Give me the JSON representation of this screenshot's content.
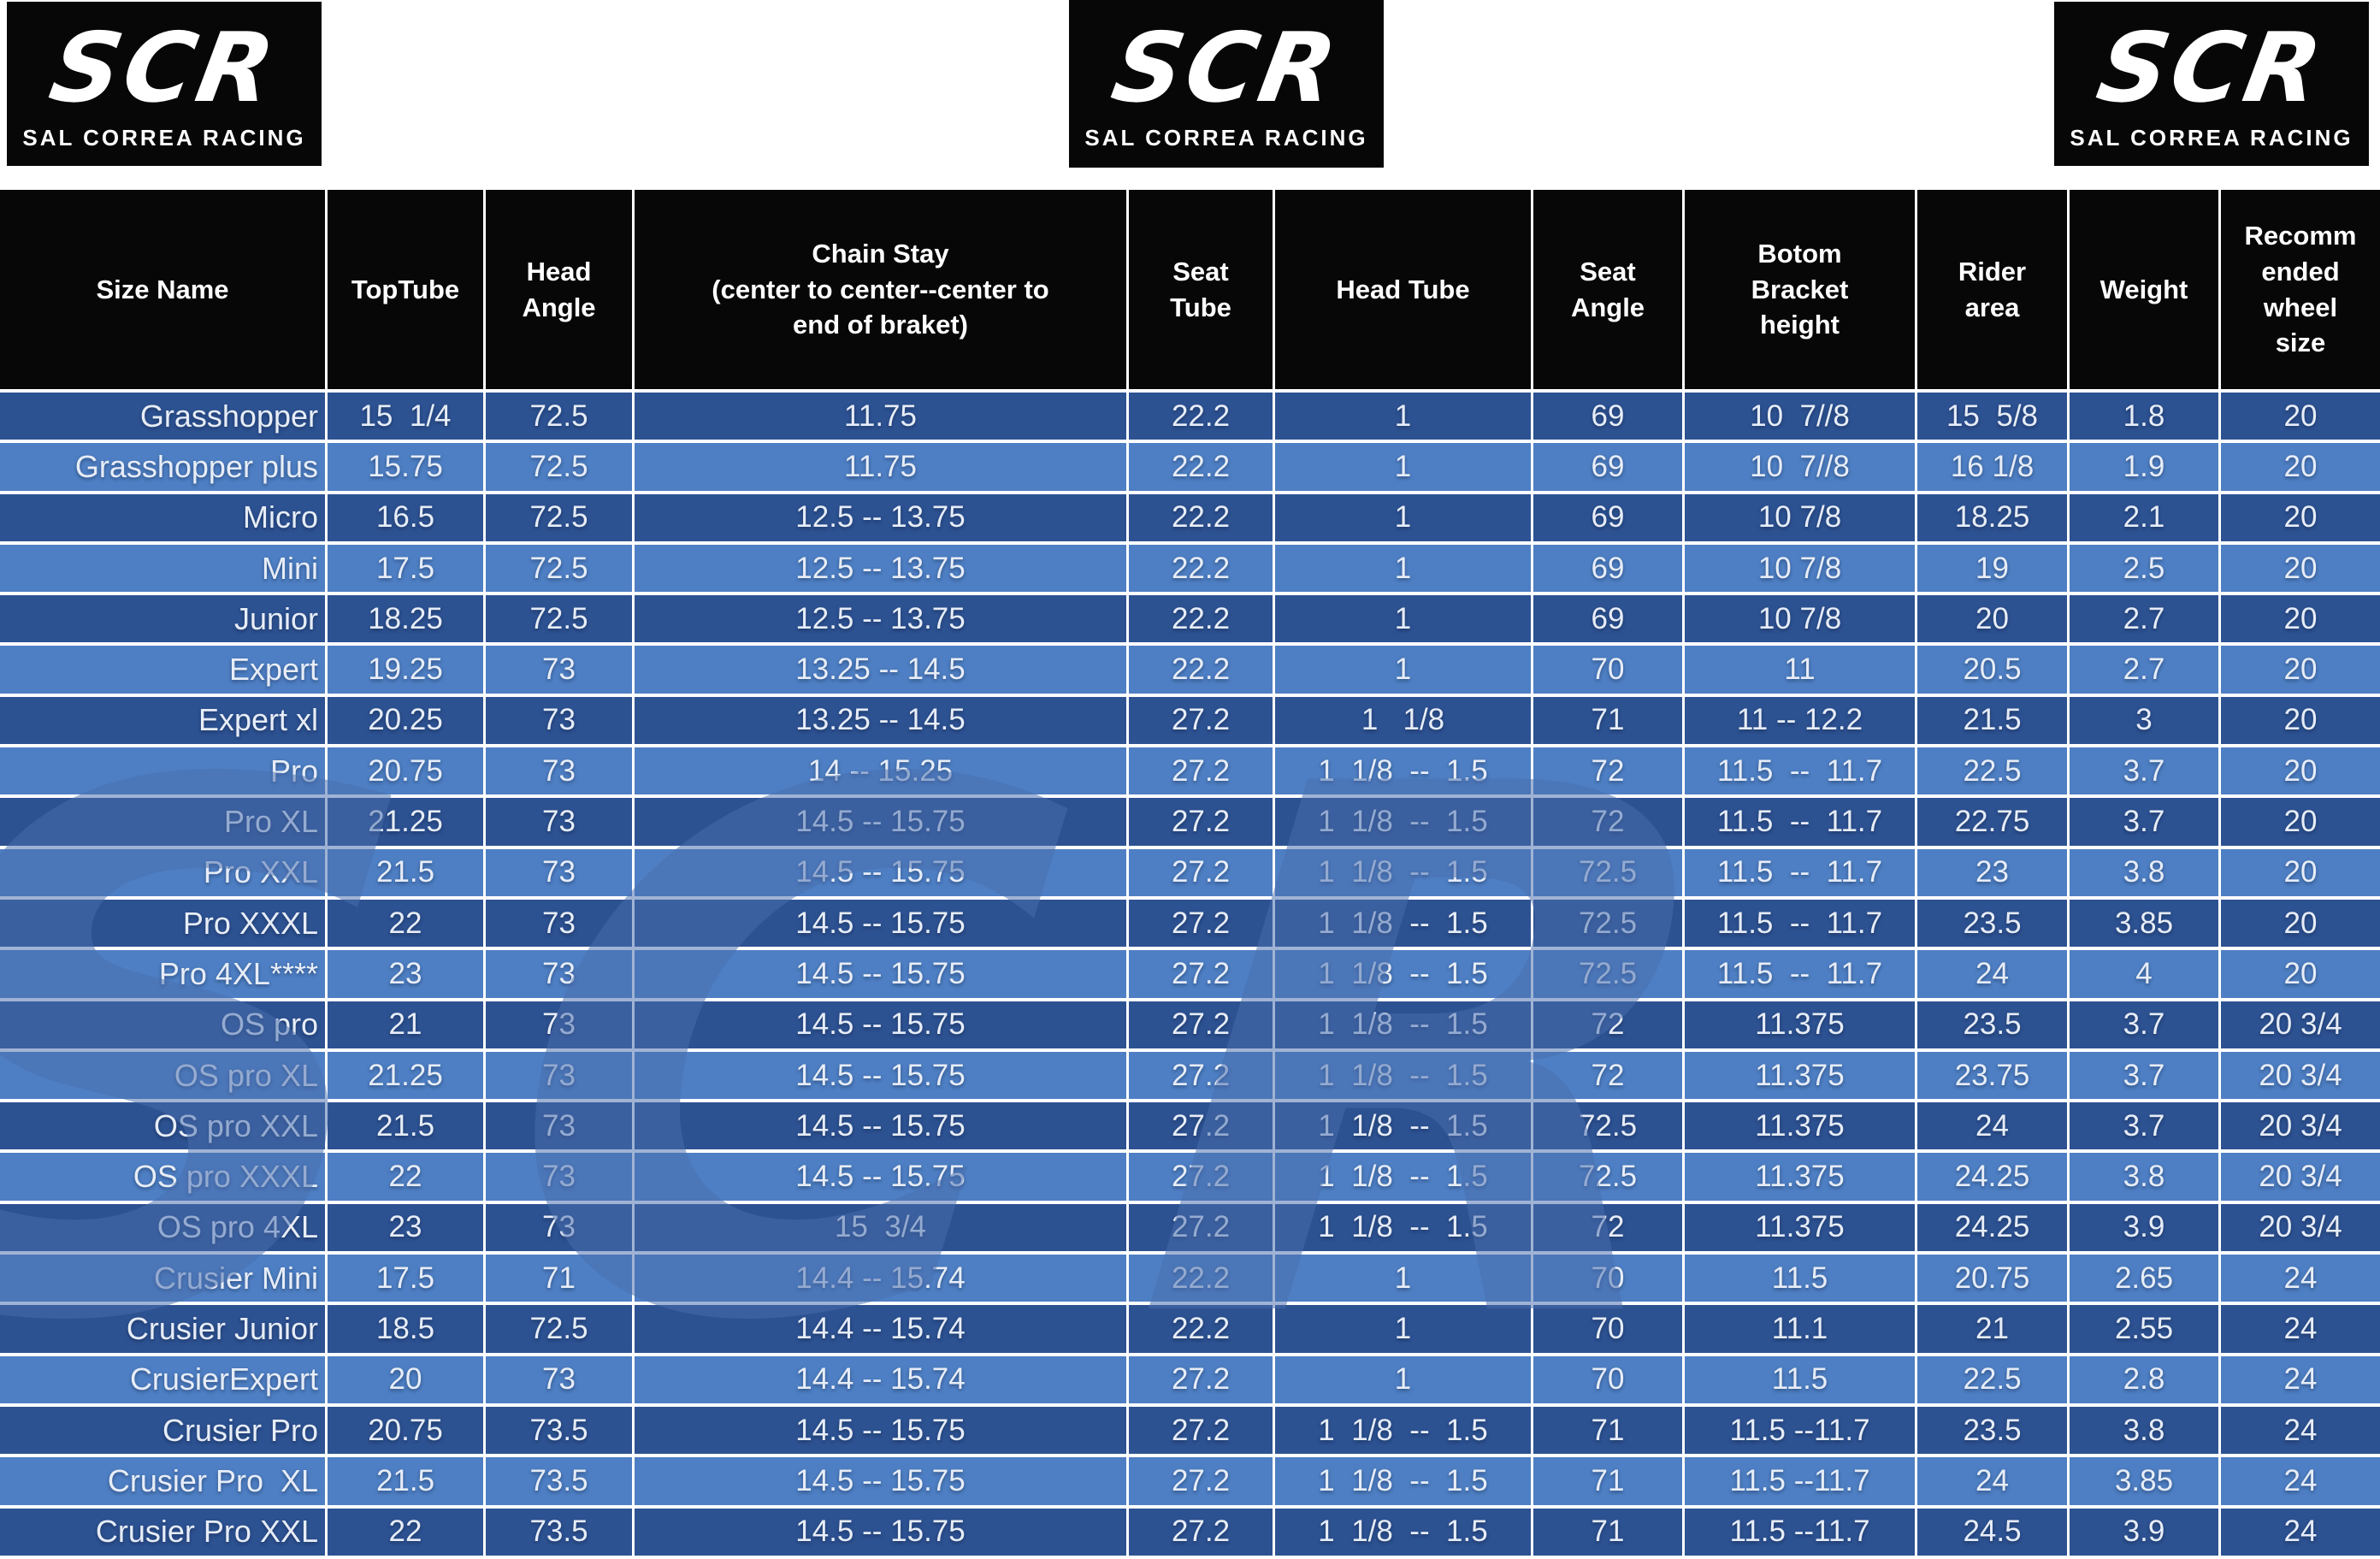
{
  "brand": {
    "logo_text": "SCR",
    "logo_subtext": "SAL CORREA RACING"
  },
  "watermark": {
    "text": "SCR"
  },
  "colors": {
    "row_dark": "#2d5292",
    "row_light": "#4e7fc4",
    "header_bg": "#070707",
    "grid_line": "#ffffff",
    "cell_text": "#e7edf7",
    "logo_bg": "#070707",
    "watermark_tint": "rgba(72,110,172,0.52)"
  },
  "table": {
    "columns": [
      "Size Name",
      "TopTube",
      "Head\nAngle",
      "Chain Stay\n(center to center--center to\nend of braket)",
      "Seat\nTube",
      "Head Tube",
      "Seat\nAngle",
      "Botom\nBracket\nheight",
      "Rider\narea",
      "Weight",
      "Recomm\nended\nwheel\nsize"
    ],
    "rows": [
      [
        "Grasshopper",
        "15  1/4",
        "72.5",
        "11.75",
        "22.2",
        "1",
        "69",
        "10  7//8",
        "15  5/8",
        "1.8",
        "20"
      ],
      [
        "Grasshopper plus",
        "15.75",
        "72.5",
        "11.75",
        "22.2",
        "1",
        "69",
        "10  7//8",
        "16 1/8",
        "1.9",
        "20"
      ],
      [
        "Micro",
        "16.5",
        "72.5",
        "12.5 -- 13.75",
        "22.2",
        "1",
        "69",
        "10 7/8",
        "18.25",
        "2.1",
        "20"
      ],
      [
        "Mini",
        "17.5",
        "72.5",
        "12.5 -- 13.75",
        "22.2",
        "1",
        "69",
        "10 7/8",
        "19",
        "2.5",
        "20"
      ],
      [
        "Junior",
        "18.25",
        "72.5",
        "12.5 -- 13.75",
        "22.2",
        "1",
        "69",
        "10 7/8",
        "20",
        "2.7",
        "20"
      ],
      [
        "Expert",
        "19.25",
        "73",
        "13.25 -- 14.5",
        "22.2",
        "1",
        "70",
        "11",
        "20.5",
        "2.7",
        "20"
      ],
      [
        "Expert xl",
        "20.25",
        "73",
        "13.25 -- 14.5",
        "27.2",
        "1   1/8",
        "71",
        "11 -- 12.2",
        "21.5",
        "3",
        "20"
      ],
      [
        "Pro",
        "20.75",
        "73",
        "14 -- 15.25",
        "27.2",
        "1  1/8  --  1.5",
        "72",
        "11.5  --  11.7",
        "22.5",
        "3.7",
        "20"
      ],
      [
        "Pro XL",
        "21.25",
        "73",
        "14.5 -- 15.75",
        "27.2",
        "1  1/8  --  1.5",
        "72",
        "11.5  --  11.7",
        "22.75",
        "3.7",
        "20"
      ],
      [
        "Pro XXL",
        "21.5",
        "73",
        "14.5 -- 15.75",
        "27.2",
        "1  1/8  --  1.5",
        "72.5",
        "11.5  --  11.7",
        "23",
        "3.8",
        "20"
      ],
      [
        "Pro XXXL",
        "22",
        "73",
        "14.5 -- 15.75",
        "27.2",
        "1  1/8  --  1.5",
        "72.5",
        "11.5  --  11.7",
        "23.5",
        "3.85",
        "20"
      ],
      [
        "Pro 4XL****",
        "23",
        "73",
        "14.5 -- 15.75",
        "27.2",
        "1  1/8  --  1.5",
        "72.5",
        "11.5  --  11.7",
        "24",
        "4",
        "20"
      ],
      [
        "OS pro",
        "21",
        "73",
        "14.5 -- 15.75",
        "27.2",
        "1  1/8  --  1.5",
        "72",
        "11.375",
        "23.5",
        "3.7",
        "20 3/4"
      ],
      [
        "OS pro XL",
        "21.25",
        "73",
        "14.5 -- 15.75",
        "27.2",
        "1  1/8  --  1.5",
        "72",
        "11.375",
        "23.75",
        "3.7",
        "20 3/4"
      ],
      [
        "OS pro XXL",
        "21.5",
        "73",
        "14.5 -- 15.75",
        "27.2",
        "1  1/8  --  1.5",
        "72.5",
        "11.375",
        "24",
        "3.7",
        "20 3/4"
      ],
      [
        "OS pro XXXL",
        "22",
        "73",
        "14.5 -- 15.75",
        "27.2",
        "1  1/8  --  1.5",
        "72.5",
        "11.375",
        "24.25",
        "3.8",
        "20 3/4"
      ],
      [
        "OS pro 4XL",
        "23",
        "73",
        "15  3/4",
        "27.2",
        "1  1/8  --  1.5",
        "72",
        "11.375",
        "24.25",
        "3.9",
        "20 3/4"
      ],
      [
        "Crusier Mini",
        "17.5",
        "71",
        "14.4 -- 15.74",
        "22.2",
        "1",
        "70",
        "11.5",
        "20.75",
        "2.65",
        "24"
      ],
      [
        "Crusier Junior",
        "18.5",
        "72.5",
        "14.4 -- 15.74",
        "22.2",
        "1",
        "70",
        "11.1",
        "21",
        "2.55",
        "24"
      ],
      [
        "CrusierExpert",
        "20",
        "73",
        "14.4 -- 15.74",
        "27.2",
        "1",
        "70",
        "11.5",
        "22.5",
        "2.8",
        "24"
      ],
      [
        "Crusier Pro",
        "20.75",
        "73.5",
        "14.5 -- 15.75",
        "27.2",
        "1  1/8  --  1.5",
        "71",
        "11.5 --11.7",
        "23.5",
        "3.8",
        "24"
      ],
      [
        "Crusier Pro  XL",
        "21.5",
        "73.5",
        "14.5 -- 15.75",
        "27.2",
        "1  1/8  --  1.5",
        "71",
        "11.5 --11.7",
        "24",
        "3.85",
        "24"
      ],
      [
        "Crusier Pro XXL",
        "22",
        "73.5",
        "14.5 -- 15.75",
        "27.2",
        "1  1/8  --  1.5",
        "71",
        "11.5 --11.7",
        "24.5",
        "3.9",
        "24"
      ]
    ]
  }
}
